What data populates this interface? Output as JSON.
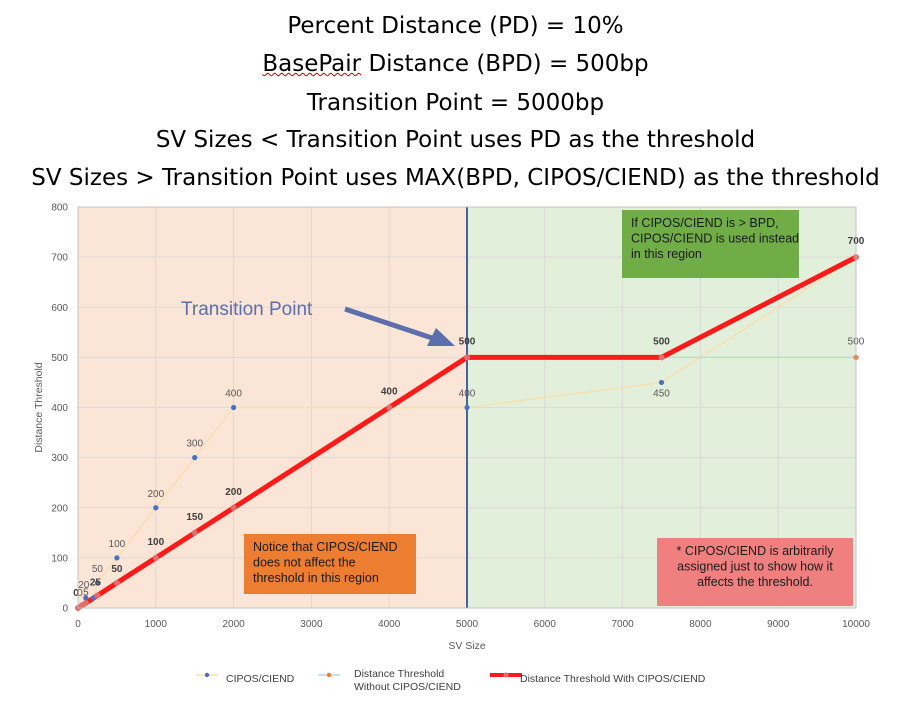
{
  "heading": {
    "line1": "Percent Distance (PD) = 10%",
    "line2_word": "BasePair",
    "line2_rest": " Distance (BPD) = 500bp",
    "line3": "Transition Point = 5000bp",
    "line4": "SV Sizes < Transition Point uses PD as the threshold",
    "line5": "SV Sizes > Transition Point uses MAX(BPD, CIPOS/CIEND) as the threshold"
  },
  "colors": {
    "left_region": "#fbe5d6",
    "right_region": "#e2efda",
    "cipos": "#4472c4",
    "cipos_line": "#f8dfb0",
    "without": "#ed7d31",
    "without_line": "#b7d6e6",
    "with_line": "#ff1a1a",
    "with_marker": "#e07070",
    "divider": "#2f5597",
    "arrow": "#5b6fad",
    "note_orange": "#ed7d31",
    "note_green": "#70ad47",
    "note_red": "#f08080"
  },
  "annotations": {
    "transition_label": "Transition Point",
    "left_note": "Notice that CIPOS/CIEND does not affect the threshold in this region",
    "right_note": "If CIPOS/CIEND is > BPD, CIPOS/CIEND is used instead in this region",
    "footnote": "* CIPOS/CIEND is arbitrarily assigned just to show how it affects the threshold."
  },
  "legend": {
    "item1": "CIPOS/CIEND",
    "item2": "Distance Threshold Without CIPOS/CIEND",
    "item3": "Distance Threshold With CIPOS/CIEND"
  },
  "chart_data": {
    "type": "line",
    "xlabel": "SV Size",
    "ylabel": "Distance Threshold",
    "xlim": [
      0,
      10000
    ],
    "ylim": [
      0,
      800
    ],
    "xticks": [
      0,
      1000,
      2000,
      3000,
      4000,
      5000,
      6000,
      7000,
      8000,
      9000,
      10000
    ],
    "yticks": [
      0,
      100,
      200,
      300,
      400,
      500,
      600,
      700,
      800
    ],
    "grid": true,
    "transition_x": 5000,
    "series": [
      {
        "name": "CIPOS/CIEND",
        "x": [
          0,
          50,
          100,
          200,
          250,
          500,
          1000,
          1500,
          2000,
          5000,
          7500,
          10000
        ],
        "y": [
          0,
          5,
          20,
          20,
          50,
          100,
          200,
          300,
          400,
          400,
          450,
          700
        ],
        "labels": [
          "0",
          "5",
          "20",
          "",
          "50",
          "100",
          "200",
          "300",
          "400",
          "400",
          "450",
          ""
        ]
      },
      {
        "name": "Distance Threshold Without CIPOS/CIEND",
        "x": [
          0,
          50,
          100,
          250,
          500,
          1000,
          1500,
          2000,
          4000,
          5000,
          7500,
          10000
        ],
        "y": [
          0,
          5,
          10,
          25,
          50,
          100,
          150,
          200,
          400,
          500,
          500,
          500
        ],
        "labels": [
          "",
          "",
          "",
          "",
          "",
          "",
          "",
          "",
          "",
          "",
          "",
          "500"
        ]
      },
      {
        "name": "Distance Threshold With CIPOS/CIEND",
        "x": [
          0,
          50,
          100,
          250,
          500,
          1000,
          1500,
          2000,
          4000,
          5000,
          7500,
          10000
        ],
        "y": [
          0,
          5,
          10,
          25,
          50,
          100,
          150,
          200,
          400,
          500,
          500,
          700
        ],
        "labels": [
          "0",
          "",
          "",
          "25",
          "50",
          "100",
          "150",
          "200",
          "400",
          "500",
          "500",
          "700"
        ]
      }
    ]
  }
}
